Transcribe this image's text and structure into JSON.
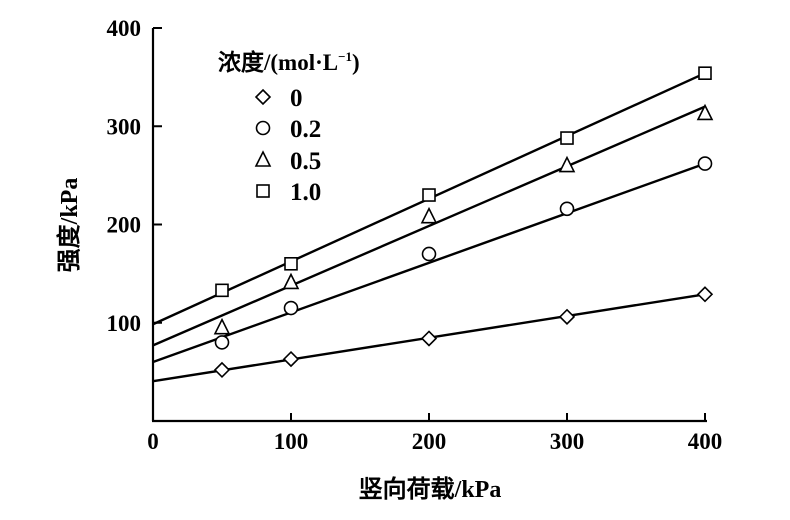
{
  "chart_data": {
    "type": "scatter",
    "title": "",
    "xlabel": "竖向荷载/kPa",
    "ylabel": "强度/kPa",
    "xlim": [
      0,
      400
    ],
    "ylim": [
      0,
      400
    ],
    "xticks": [
      "0",
      "100",
      "200",
      "300",
      "400"
    ],
    "yticks": [
      "100",
      "200",
      "300",
      "400"
    ],
    "xtick_values": [
      0,
      100,
      200,
      300,
      400
    ],
    "ytick_values": [
      100,
      200,
      300,
      400
    ],
    "grid": false,
    "legend_title": "浓度/(mol·L",
    "legend_title_sup": "−1",
    "legend_title_end": ")",
    "legend_position": "top-left",
    "series": [
      {
        "name": "0",
        "marker": "diamond",
        "x": [
          50,
          100,
          200,
          300,
          400
        ],
        "y": [
          52,
          63,
          84,
          106,
          129
        ],
        "fit": [
          40.5,
          129
        ]
      },
      {
        "name": "0.2",
        "marker": "circle",
        "x": [
          50,
          100,
          200,
          300,
          400
        ],
        "y": [
          80,
          115,
          170,
          216,
          262
        ],
        "fit": [
          60,
          262
        ]
      },
      {
        "name": "0.5",
        "marker": "triangle",
        "x": [
          50,
          100,
          200,
          300,
          400
        ],
        "y": [
          95,
          141,
          208,
          260,
          313
        ],
        "fit": [
          77,
          320
        ]
      },
      {
        "name": "1.0",
        "marker": "square",
        "x": [
          50,
          100,
          200,
          300,
          400
        ],
        "y": [
          133,
          160,
          230,
          288,
          354
        ],
        "fit": [
          98.5,
          354
        ]
      }
    ]
  }
}
